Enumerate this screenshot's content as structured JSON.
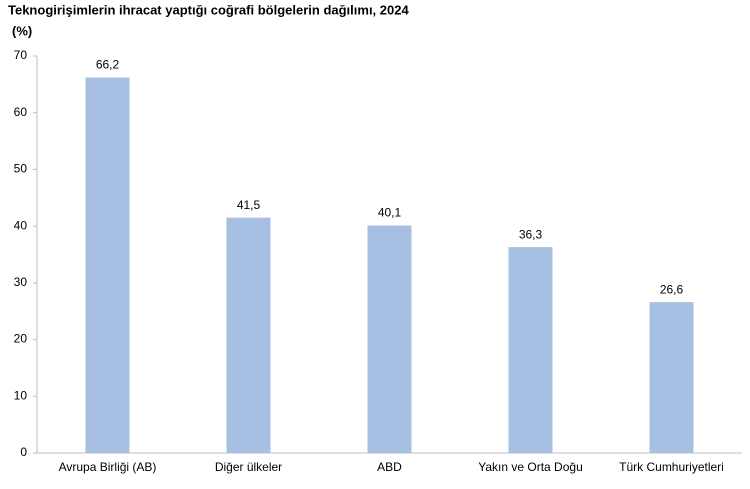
{
  "chart_data": {
    "type": "bar",
    "title": "Teknogirişimlerin ihracat yaptığı coğrafi bölgelerin dağılımı, 2024",
    "y_label": "(%)",
    "categories": [
      "Avrupa Birliği (AB)",
      "Diğer ülkeler",
      "ABD",
      "Yakın ve Orta Doğu",
      "Türk Cumhuriyetleri"
    ],
    "values": [
      66.2,
      41.5,
      40.1,
      36.3,
      26.6
    ],
    "value_labels": [
      "66,2",
      "41,5",
      "40,1",
      "36,3",
      "26,6"
    ],
    "color": "#a6bfe2",
    "ylim": [
      0,
      70
    ],
    "yticks": [
      0,
      10,
      20,
      30,
      40,
      50,
      60,
      70
    ],
    "grid": false
  }
}
